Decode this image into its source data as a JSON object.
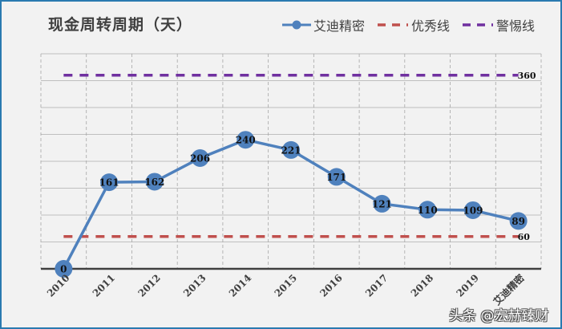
{
  "chart_data": {
    "type": "line",
    "title": "现金周转周期（天）",
    "xlabel": "",
    "ylabel": "",
    "ylim": [
      0,
      400
    ],
    "grid": {
      "horizontal": true,
      "vertical": true,
      "y_step": 50
    },
    "legend_position": "top-right",
    "categories": [
      "2010",
      "2011",
      "2012",
      "2013",
      "2014",
      "2015",
      "2016",
      "2017",
      "2018",
      "2019",
      "艾迪精密"
    ],
    "series": [
      {
        "name": "艾迪精密",
        "style": "solid line with circle markers",
        "color": "#4f81bd",
        "values": [
          0,
          161,
          162,
          206,
          240,
          221,
          171,
          121,
          110,
          109,
          89
        ]
      },
      {
        "name": "优秀线",
        "style": "dashed",
        "color": "#c0504d",
        "values": [
          60,
          60,
          60,
          60,
          60,
          60,
          60,
          60,
          60,
          60,
          60
        ],
        "end_label": "60"
      },
      {
        "name": "警惕线",
        "style": "dashed",
        "color": "#7030a0",
        "values": [
          360,
          360,
          360,
          360,
          360,
          360,
          360,
          360,
          360,
          360,
          360
        ],
        "end_label": "360"
      }
    ]
  },
  "header": {
    "title": "现金周转周期（天）"
  },
  "legend": {
    "items": [
      {
        "label": "艾迪精密",
        "color": "#4f81bd"
      },
      {
        "label": "优秀线",
        "color": "#c0504d"
      },
      {
        "label": "警惕线",
        "color": "#7030a0"
      }
    ]
  },
  "watermark": "头条 @宏赫臻财"
}
